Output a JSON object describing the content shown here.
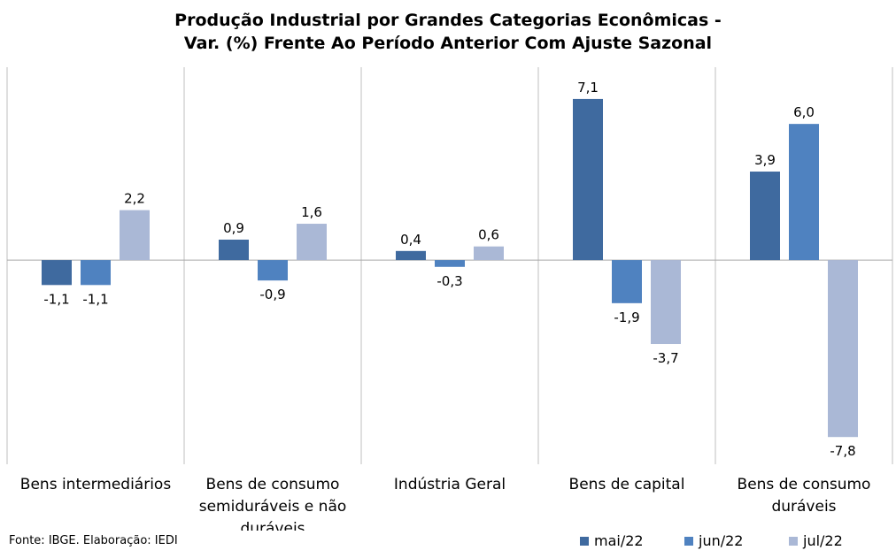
{
  "chart_data": {
    "type": "bar",
    "title_line1": "Produção Industrial por Grandes Categorias Econômicas -",
    "title_line2": "Var. (%) Frente Ao Período Anterior Com Ajuste Sazonal",
    "categories": [
      [
        "Bens intermediários"
      ],
      [
        "Bens de consumo",
        "semiduráveis e não",
        "duráveis"
      ],
      [
        "Indústria Geral"
      ],
      [
        "Bens de capital"
      ],
      [
        "Bens de consumo",
        "duráveis"
      ]
    ],
    "series": [
      {
        "name": "mai/22",
        "color": "#3f6a9f",
        "values": [
          -1.1,
          0.9,
          0.4,
          7.1,
          3.9
        ],
        "labels": [
          "-1,1",
          "0,9",
          "0,4",
          "7,1",
          "3,9"
        ]
      },
      {
        "name": "jun/22",
        "color": "#4f82c0",
        "values": [
          -1.1,
          -0.9,
          -0.3,
          -1.9,
          6.0
        ],
        "labels": [
          "-1,1",
          "-0,9",
          "-0,3",
          "-1,9",
          "6,0"
        ]
      },
      {
        "name": "jul/22",
        "color": "#aab8d6",
        "values": [
          2.2,
          1.6,
          0.6,
          -3.7,
          -7.8
        ],
        "labels": [
          "2,2",
          "1,6",
          "0,6",
          "-3,7",
          "-7,8"
        ]
      }
    ],
    "ylim": [
      -9.0,
      8.5
    ],
    "grid": false,
    "legend_position": "bottom-right",
    "source": "Fonte: IBGE. Elaboração: IEDI"
  }
}
